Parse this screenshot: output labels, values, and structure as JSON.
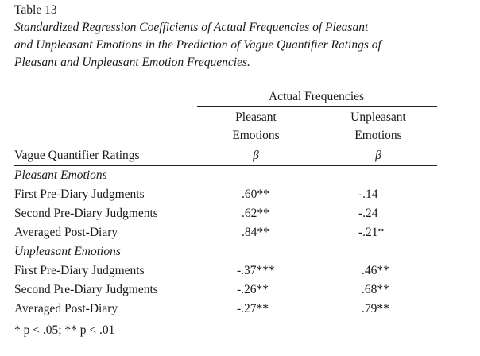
{
  "table": {
    "label": "Table 13",
    "caption_lines": [
      "Standardized Regression Coefficients of Actual Frequencies of Pleasant",
      "and Unpleasant Emotions in the Prediction of Vague Quantifier Ratings of",
      "Pleasant and Unpleasant Emotion Frequencies."
    ],
    "spanner_header": "Actual Frequencies",
    "col1_header_line1": "Pleasant",
    "col1_header_line2": "Emotions",
    "col2_header_line1": "Unpleasant",
    "col2_header_line2": "Emotions",
    "stub_header": "Vague Quantifier Ratings",
    "beta_symbol": "β",
    "sections": [
      {
        "title": "Pleasant Emotions",
        "rows": [
          {
            "label": "First Pre-Diary Judgments",
            "pleasant": ".60**",
            "unpleasant": "-.14"
          },
          {
            "label": "Second Pre-Diary Judgments",
            "pleasant": ".62**",
            "unpleasant": "-.24"
          },
          {
            "label": "Averaged Post-Diary",
            "pleasant": ".84**",
            "unpleasant": "-.21*"
          }
        ]
      },
      {
        "title": "Unpleasant Emotions",
        "rows": [
          {
            "label": "First Pre-Diary Judgments",
            "pleasant": "-.37***",
            "unpleasant": ".46**"
          },
          {
            "label": "Second Pre-Diary Judgments",
            "pleasant": "-.26**",
            "unpleasant": ".68**"
          },
          {
            "label": "Averaged Post-Diary",
            "pleasant": "-.27**",
            "unpleasant": ".79**"
          }
        ]
      }
    ],
    "footnote": "* p < .05; ** p < .01"
  }
}
